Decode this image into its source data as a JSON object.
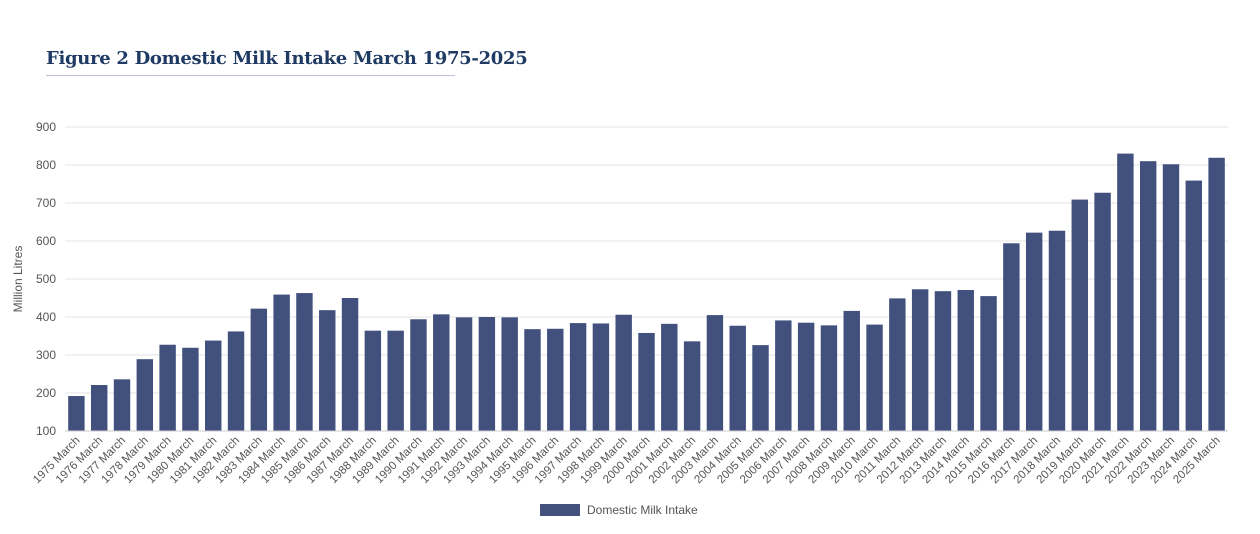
{
  "page": {
    "title": "Figure 2 Domestic Milk Intake March 1975-2025"
  },
  "chart_data": {
    "type": "bar",
    "ylabel": "Million Litres",
    "ylim": [
      100,
      900
    ],
    "yticks": [
      100,
      200,
      300,
      400,
      500,
      600,
      700,
      800,
      900
    ],
    "grid": true,
    "legend_position": "bottom",
    "bar_color": "#42507e",
    "categories": [
      "1975 March",
      "1976 March",
      "1977 March",
      "1978 March",
      "1979 March",
      "1980 March",
      "1981 March",
      "1982 March",
      "1983 March",
      "1984 March",
      "1985 March",
      "1986 March",
      "1987 March",
      "1988 March",
      "1989 March",
      "1990 March",
      "1991 March",
      "1992 March",
      "1993 March",
      "1994 March",
      "1995 March",
      "1996 March",
      "1997 March",
      "1998 March",
      "1999 March",
      "2000 March",
      "2001 March",
      "2002 March",
      "2003 March",
      "2004 March",
      "2005 March",
      "2006 March",
      "2007 March",
      "2008 March",
      "2009 March",
      "2010 March",
      "2011 March",
      "2012 March",
      "2013 March",
      "2014 March",
      "2015 March",
      "2016 March",
      "2017 March",
      "2018 March",
      "2019 March",
      "2020 March",
      "2021 March",
      "2022 March",
      "2023 March",
      "2024 March",
      "2025 March"
    ],
    "series": [
      {
        "name": "Domestic Milk Intake",
        "values": [
          192,
          221,
          236,
          289,
          327,
          319,
          338,
          362,
          422,
          459,
          463,
          418,
          450,
          364,
          364,
          394,
          407,
          399,
          400,
          399,
          368,
          369,
          384,
          383,
          406,
          358,
          382,
          336,
          405,
          377,
          326,
          391,
          385,
          378,
          416,
          380,
          449,
          473,
          468,
          471,
          455,
          594,
          622,
          627,
          709,
          727,
          830,
          810,
          802,
          759,
          819
        ]
      }
    ]
  }
}
